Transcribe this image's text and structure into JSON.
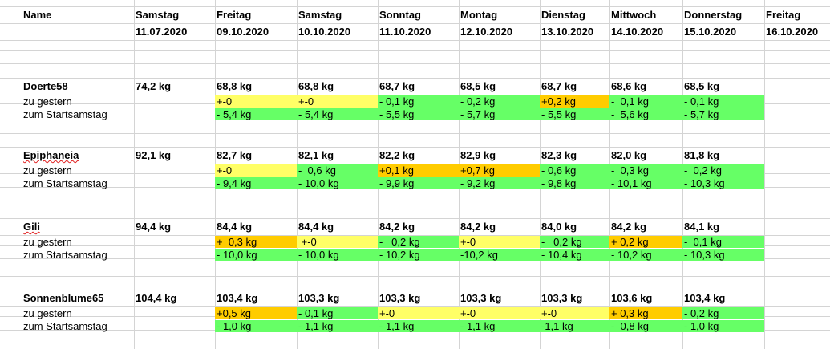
{
  "header": {
    "name_label": "Name",
    "columns": [
      {
        "day": "Samstag",
        "date": "11.07.2020"
      },
      {
        "day": "Freitag",
        "date": "09.10.2020"
      },
      {
        "day": "Samstag",
        "date": "10.10.2020"
      },
      {
        "day": "Sonntag",
        "date": "11.10.2020"
      },
      {
        "day": "Montag",
        "date": "12.10.2020"
      },
      {
        "day": "Dienstag",
        "date": "13.10.2020"
      },
      {
        "day": "Mittwoch",
        "date": "14.10.2020"
      },
      {
        "day": "Donnerstag",
        "date": "15.10.2020"
      },
      {
        "day": "Freitag",
        "date": "16.10.2020"
      }
    ]
  },
  "colors": {
    "yellow": "#ffff66",
    "green": "#66ff66",
    "orange": "#ffcc00",
    "grid": "#d4d4d4"
  },
  "rows_labels": {
    "yesterday": "zu gestern",
    "start": "zum Startsamstag"
  },
  "persons": [
    {
      "name": "Doerte58",
      "start": "74,2 kg",
      "weights": [
        "68,8 kg",
        "68,8 kg",
        "68,7 kg",
        "68,5 kg",
        "68,7 kg",
        "68,6 kg",
        "68,5 kg"
      ],
      "yesterday": [
        {
          "v": "+-0",
          "c": "yellow"
        },
        {
          "v": "+-0",
          "c": "yellow"
        },
        {
          "v": "- 0,1 kg",
          "c": "green"
        },
        {
          "v": "- 0,2 kg",
          "c": "green"
        },
        {
          "v": "+0,2 kg",
          "c": "orange"
        },
        {
          "v": "-  0,1 kg",
          "c": "green"
        },
        {
          "v": "- 0,1 kg",
          "c": "green"
        }
      ],
      "tostart": [
        {
          "v": "- 5,4 kg",
          "c": "green"
        },
        {
          "v": "- 5,4 kg",
          "c": "green"
        },
        {
          "v": "- 5,5 kg",
          "c": "green"
        },
        {
          "v": "- 5,7 kg",
          "c": "green"
        },
        {
          "v": "- 5,5 kg",
          "c": "green"
        },
        {
          "v": "-  5,6 kg",
          "c": "green"
        },
        {
          "v": "- 5,7 kg",
          "c": "green"
        }
      ]
    },
    {
      "name": "Epiphaneia",
      "spell": true,
      "start": "92,1 kg",
      "weights": [
        "82,7 kg",
        "82,1 kg",
        "82,2 kg",
        "82,9 kg",
        "82,3 kg",
        "82,0 kg",
        "81,8 kg"
      ],
      "yesterday": [
        {
          "v": "+-0",
          "c": "yellow"
        },
        {
          "v": "-  0,6 kg",
          "c": "green"
        },
        {
          "v": "+0,1 kg",
          "c": "orange"
        },
        {
          "v": "+0,7 kg",
          "c": "orange"
        },
        {
          "v": "- 0,6 kg",
          "c": "green"
        },
        {
          "v": "-  0,3 kg",
          "c": "green"
        },
        {
          "v": "-  0,2 kg",
          "c": "green"
        }
      ],
      "tostart": [
        {
          "v": "- 9,4 kg",
          "c": "green"
        },
        {
          "v": "- 10,0 kg",
          "c": "green"
        },
        {
          "v": "- 9,9 kg",
          "c": "green"
        },
        {
          "v": "- 9,2 kg",
          "c": "green"
        },
        {
          "v": "- 9,8 kg",
          "c": "green"
        },
        {
          "v": "- 10,1 kg",
          "c": "green"
        },
        {
          "v": "- 10,3 kg",
          "c": "green"
        }
      ]
    },
    {
      "name": "Gili",
      "spell": true,
      "start": "94,4 kg",
      "weights": [
        "84,4 kg",
        "84,4 kg",
        "84,2 kg",
        "84,2 kg",
        "84,0 kg",
        "84,2 kg",
        "84,1 kg"
      ],
      "yesterday": [
        {
          "v": "+  0,3 kg",
          "c": "orange"
        },
        {
          "v": " +-0",
          "c": "yellow"
        },
        {
          "v": "-   0,2 kg",
          "c": "green"
        },
        {
          "v": "+-0",
          "c": "yellow"
        },
        {
          "v": "-   0,2 kg",
          "c": "green"
        },
        {
          "v": "+ 0,2 kg",
          "c": "orange"
        },
        {
          "v": "-  0,1 kg",
          "c": "green"
        }
      ],
      "tostart": [
        {
          "v": "- 10,0 kg",
          "c": "green"
        },
        {
          "v": "- 10,0 kg",
          "c": "green"
        },
        {
          "v": "- 10,2 kg",
          "c": "green"
        },
        {
          "v": "-10,2 kg",
          "c": "green"
        },
        {
          "v": "- 10,4 kg",
          "c": "green"
        },
        {
          "v": "- 10,2 kg",
          "c": "green"
        },
        {
          "v": "- 10,3 kg",
          "c": "green"
        }
      ]
    },
    {
      "name": "Sonnenblume65",
      "start": "104,4 kg",
      "weights": [
        "103,4 kg",
        "103,3 kg",
        "103,3 kg",
        "103,3 kg",
        "103,3 kg",
        "103,6 kg",
        "103,4 kg"
      ],
      "yesterday": [
        {
          "v": "+0,5 kg",
          "c": "orange"
        },
        {
          "v": "- 0,1 kg",
          "c": "green"
        },
        {
          "v": "+-0",
          "c": "yellow"
        },
        {
          "v": "+-0",
          "c": "yellow"
        },
        {
          "v": "+-0",
          "c": "yellow"
        },
        {
          "v": "+ 0,3 kg",
          "c": "orange"
        },
        {
          "v": "- 0,2 kg",
          "c": "green"
        }
      ],
      "tostart": [
        {
          "v": "- 1,0 kg",
          "c": "green"
        },
        {
          "v": "- 1,1 kg",
          "c": "green"
        },
        {
          "v": "- 1,1 kg",
          "c": "green"
        },
        {
          "v": "- 1,1 kg",
          "c": "green"
        },
        {
          "v": "-1,1 kg",
          "c": "green"
        },
        {
          "v": "-  0,8 kg",
          "c": "green"
        },
        {
          "v": "- 1,0 kg",
          "c": "green"
        }
      ]
    }
  ]
}
